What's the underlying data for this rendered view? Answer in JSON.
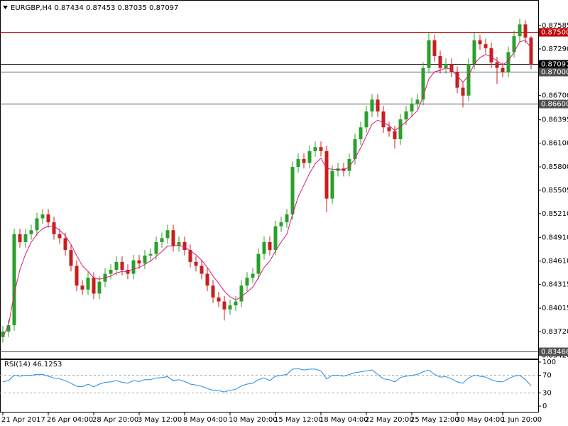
{
  "chart_data": {
    "type": "candlestick",
    "title": "EURGBP,H4  0.87434 0.87453 0.87035 0.87097",
    "up_color": "#2aa02a",
    "down_color": "#c81e1e",
    "categories": [
      "21 Apr 2017",
      null,
      null,
      null,
      null,
      null,
      null,
      null,
      "26 Apr 04:00",
      null,
      null,
      null,
      null,
      null,
      null,
      null,
      "28 Apr 20:00",
      null,
      null,
      null,
      null,
      null,
      null,
      null,
      "3 May 12:00",
      null,
      null,
      null,
      null,
      null,
      null,
      null,
      "8 May 04:00",
      null,
      null,
      null,
      null,
      null,
      null,
      null,
      "10 May 20:00",
      null,
      null,
      null,
      null,
      null,
      null,
      null,
      "15 May 12:00",
      null,
      null,
      null,
      null,
      null,
      null,
      null,
      "18 May 04:00",
      null,
      null,
      null,
      null,
      null,
      null,
      null,
      "22 May 20:00",
      null,
      null,
      null,
      null,
      null,
      null,
      null,
      "25 May 12:00",
      null,
      null,
      null,
      null,
      null,
      null,
      null,
      "30 May 04:00",
      null,
      null,
      null,
      null,
      null,
      null,
      null,
      "1 Jun 20:00",
      null,
      null,
      null,
      null,
      null
    ],
    "open": [
      0.8365,
      0.8372,
      0.838,
      0.8495,
      0.8485,
      0.8495,
      0.85,
      0.8515,
      0.852,
      0.851,
      0.8495,
      0.849,
      0.8475,
      0.8455,
      0.843,
      0.8425,
      0.844,
      0.842,
      0.8435,
      0.8445,
      0.845,
      0.846,
      0.845,
      0.8445,
      0.8462,
      0.8458,
      0.8468,
      0.847,
      0.8485,
      0.849,
      0.85,
      0.848,
      0.8485,
      0.8475,
      0.846,
      0.8455,
      0.8445,
      0.843,
      0.8415,
      0.841,
      0.84,
      0.8405,
      0.841,
      0.843,
      0.844,
      0.8445,
      0.847,
      0.8485,
      0.8475,
      0.8505,
      0.851,
      0.852,
      0.858,
      0.859,
      0.8585,
      0.86,
      0.8605,
      0.86,
      0.854,
      0.8575,
      0.8578,
      0.8575,
      0.859,
      0.8615,
      0.863,
      0.865,
      0.8665,
      0.865,
      0.863,
      0.8625,
      0.8615,
      0.864,
      0.865,
      0.866,
      0.8665,
      0.8705,
      0.874,
      0.872,
      0.8705,
      0.871,
      0.87,
      0.868,
      0.867,
      0.871,
      0.874,
      0.8735,
      0.873,
      0.8712,
      0.8705,
      0.87,
      0.8725,
      0.8745,
      0.876,
      0.87434
    ],
    "high": [
      0.8379,
      0.8387,
      0.8502,
      0.8502,
      0.8502,
      0.8507,
      0.8522,
      0.8527,
      0.8527,
      0.8517,
      0.8502,
      0.8497,
      0.8482,
      0.8462,
      0.8437,
      0.8447,
      0.8447,
      0.8442,
      0.8452,
      0.8457,
      0.8467,
      0.8467,
      0.8457,
      0.8469,
      0.8469,
      0.8475,
      0.8477,
      0.8492,
      0.8497,
      0.8507,
      0.8507,
      0.8492,
      0.8492,
      0.8482,
      0.8467,
      0.8462,
      0.8452,
      0.8437,
      0.8422,
      0.8417,
      0.8412,
      0.8417,
      0.8437,
      0.8447,
      0.8452,
      0.8477,
      0.8492,
      0.8492,
      0.8512,
      0.8517,
      0.8527,
      0.8587,
      0.8597,
      0.8597,
      0.8607,
      0.8612,
      0.8612,
      0.8607,
      0.8582,
      0.8585,
      0.8585,
      0.8597,
      0.8622,
      0.8637,
      0.8657,
      0.8672,
      0.8672,
      0.8657,
      0.8637,
      0.8632,
      0.8647,
      0.8657,
      0.8667,
      0.8672,
      0.8712,
      0.875,
      0.8747,
      0.8727,
      0.8717,
      0.8717,
      0.8707,
      0.8687,
      0.8717,
      0.875,
      0.8747,
      0.8742,
      0.8737,
      0.8719,
      0.8712,
      0.8732,
      0.8752,
      0.8767,
      0.8765,
      0.87453
    ],
    "low": [
      0.8358,
      0.8365,
      0.8373,
      0.8478,
      0.8478,
      0.8488,
      0.8493,
      0.8508,
      0.8503,
      0.8488,
      0.8483,
      0.8468,
      0.8448,
      0.8423,
      0.8418,
      0.8418,
      0.8413,
      0.8413,
      0.8428,
      0.8438,
      0.8443,
      0.8443,
      0.8438,
      0.8438,
      0.8451,
      0.8451,
      0.8461,
      0.8463,
      0.8478,
      0.8483,
      0.8473,
      0.8473,
      0.8468,
      0.8453,
      0.8448,
      0.8438,
      0.8423,
      0.8408,
      0.8403,
      0.8386,
      0.8393,
      0.8398,
      0.8403,
      0.8423,
      0.8433,
      0.8438,
      0.8463,
      0.8468,
      0.8468,
      0.8498,
      0.8503,
      0.8513,
      0.8573,
      0.8578,
      0.8578,
      0.8593,
      0.8593,
      0.8523,
      0.8533,
      0.8568,
      0.8568,
      0.8568,
      0.8583,
      0.8608,
      0.8623,
      0.8643,
      0.8643,
      0.8623,
      0.8618,
      0.8603,
      0.8608,
      0.8633,
      0.8643,
      0.8653,
      0.8658,
      0.8698,
      0.8713,
      0.8698,
      0.8698,
      0.8693,
      0.8673,
      0.8655,
      0.8663,
      0.8703,
      0.8728,
      0.8723,
      0.8705,
      0.8685,
      0.8693,
      0.8693,
      0.8718,
      0.8738,
      0.8736,
      0.87035
    ],
    "close": [
      0.8372,
      0.838,
      0.8495,
      0.8485,
      0.8495,
      0.85,
      0.8515,
      0.852,
      0.851,
      0.8495,
      0.849,
      0.8475,
      0.8455,
      0.843,
      0.8425,
      0.844,
      0.842,
      0.8435,
      0.8445,
      0.845,
      0.846,
      0.845,
      0.8445,
      0.8462,
      0.8458,
      0.8468,
      0.847,
      0.8485,
      0.849,
      0.85,
      0.848,
      0.8485,
      0.8475,
      0.846,
      0.8455,
      0.8445,
      0.843,
      0.8415,
      0.841,
      0.84,
      0.8405,
      0.841,
      0.843,
      0.844,
      0.8445,
      0.847,
      0.8485,
      0.8475,
      0.8505,
      0.851,
      0.852,
      0.858,
      0.859,
      0.8585,
      0.86,
      0.8605,
      0.86,
      0.854,
      0.8575,
      0.8578,
      0.8575,
      0.859,
      0.8615,
      0.863,
      0.865,
      0.8665,
      0.865,
      0.863,
      0.8625,
      0.8615,
      0.864,
      0.865,
      0.866,
      0.8665,
      0.8705,
      0.874,
      0.872,
      0.8705,
      0.871,
      0.87,
      0.868,
      0.867,
      0.871,
      0.874,
      0.8735,
      0.873,
      0.8712,
      0.8705,
      0.87,
      0.8725,
      0.8745,
      0.876,
      0.87434,
      0.87097
    ],
    "ma": {
      "color": "#e0147f",
      "values": [
        0.8365,
        0.838,
        0.842,
        0.845,
        0.847,
        0.8485,
        0.8495,
        0.8502,
        0.8505,
        0.8505,
        0.85,
        0.8493,
        0.8482,
        0.8468,
        0.8455,
        0.8448,
        0.844,
        0.8438,
        0.844,
        0.8442,
        0.8446,
        0.8448,
        0.8448,
        0.8451,
        0.8453,
        0.8457,
        0.8461,
        0.8467,
        0.8473,
        0.848,
        0.848,
        0.8481,
        0.8479,
        0.8474,
        0.8469,
        0.8462,
        0.8453,
        0.8442,
        0.8433,
        0.8423,
        0.8416,
        0.8412,
        0.8416,
        0.8422,
        0.8428,
        0.844,
        0.8453,
        0.8461,
        0.8474,
        0.8485,
        0.8495,
        0.852,
        0.8542,
        0.8557,
        0.8572,
        0.8584,
        0.8591,
        0.8578,
        0.8577,
        0.8577,
        0.8576,
        0.858,
        0.8591,
        0.8604,
        0.8619,
        0.8634,
        0.8639,
        0.8636,
        0.8632,
        0.8626,
        0.8631,
        0.8637,
        0.8644,
        0.8651,
        0.8669,
        0.8691,
        0.87,
        0.8702,
        0.8705,
        0.8703,
        0.8695,
        0.8687,
        0.8695,
        0.871,
        0.8718,
        0.8722,
        0.8719,
        0.8714,
        0.8709,
        0.8714,
        0.8725,
        0.8738,
        0.874,
        0.873
      ]
    },
    "ylim": [
      0.83379,
      0.87908
    ],
    "yticks": [
      0.87585,
      {
        "value": 0.8729,
        "label": "0.87290"
      },
      {
        "value": 0.867,
        "label": "0.86700"
      },
      0.86395,
      {
        "value": 0.861,
        "label": "0.86100"
      },
      {
        "value": 0.858,
        "label": "0.85800"
      },
      0.85505,
      {
        "value": 0.8521,
        "label": "0.85210"
      },
      {
        "value": 0.8491,
        "label": "0.84910"
      },
      {
        "value": 0.8461,
        "label": "0.84610"
      },
      0.84315,
      0.84015,
      {
        "value": 0.8372,
        "label": "0.83720"
      },
      {
        "value": 0.8342,
        "label": "0.83420"
      }
    ],
    "levels": [
      {
        "value": 0.875,
        "label": "0.87500",
        "color": "#c00000"
      },
      {
        "value": 0.87097,
        "label": "0.87097",
        "color": "#000000"
      },
      {
        "value": 0.87,
        "label": "0.87000",
        "color": "#505050"
      },
      {
        "value": 0.866,
        "label": "0.86600",
        "color": "#505050"
      },
      {
        "value": 0.83466,
        "label": "0.83466",
        "color": "#505050"
      }
    ],
    "rsi": {
      "title": "RSI(14) 46.1253",
      "color": "#1e8ce6",
      "ylim": [
        0,
        100
      ],
      "yticks": [
        0,
        30,
        70,
        100
      ],
      "values": [
        55,
        58,
        70,
        68,
        70,
        70,
        72,
        72,
        68,
        64,
        62,
        58,
        52,
        45,
        44,
        50,
        44,
        50,
        54,
        55,
        58,
        54,
        52,
        58,
        56,
        60,
        60,
        64,
        65,
        67,
        58,
        60,
        56,
        50,
        48,
        45,
        40,
        36,
        35,
        32,
        36,
        38,
        46,
        50,
        52,
        60,
        64,
        58,
        68,
        70,
        72,
        84,
        85,
        82,
        84,
        84,
        80,
        62,
        70,
        70,
        68,
        72,
        76,
        78,
        80,
        82,
        72,
        62,
        60,
        55,
        65,
        68,
        70,
        72,
        78,
        82,
        72,
        66,
        67,
        62,
        55,
        52,
        64,
        70,
        68,
        66,
        60,
        56,
        55,
        62,
        68,
        70,
        60,
        46.1253
      ]
    }
  }
}
